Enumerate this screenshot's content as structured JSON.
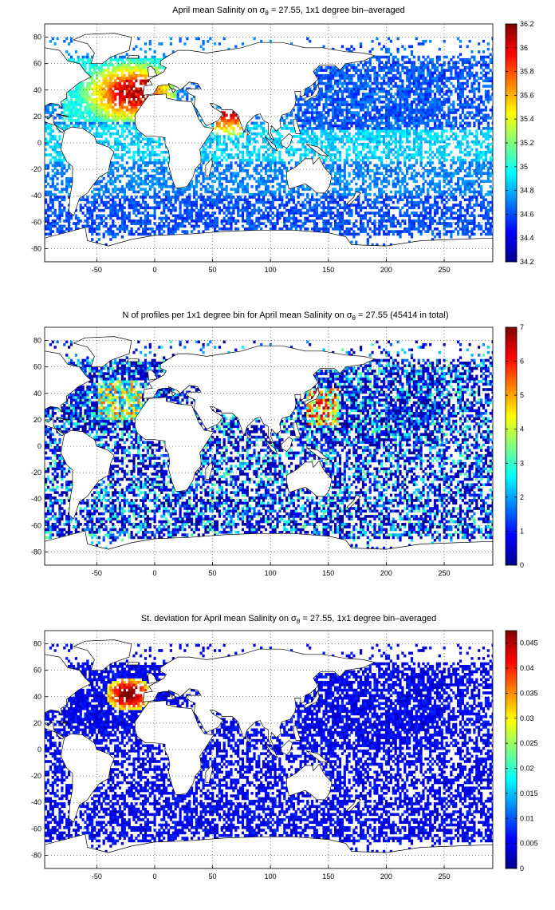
{
  "colors": {
    "jet": [
      "#00008f",
      "#0000ff",
      "#0080ff",
      "#00ffff",
      "#80ff80",
      "#ffff00",
      "#ff8000",
      "#ff0000",
      "#800000"
    ],
    "land": "#ffffff",
    "coast": "#000000"
  },
  "chart_data": [
    {
      "type": "heatmap",
      "id": "salinity",
      "title_main": "April mean Salinity on σ",
      "title_sub": "θ",
      "title_rest": " = 27.55, 1x1 degree bin–averaged",
      "xlim": [
        -95,
        292
      ],
      "ylim": [
        -90,
        90
      ],
      "xticks": [
        -50,
        0,
        50,
        100,
        150,
        200,
        250
      ],
      "yticks": [
        80,
        60,
        40,
        20,
        0,
        -20,
        -40,
        -60,
        -80
      ],
      "colorbar": {
        "min": 34.2,
        "max": 36.2,
        "ticks": [
          "36.2",
          "36",
          "35.8",
          "35.6",
          "35.4",
          "35.2",
          "35",
          "34.8",
          "34.6",
          "34.4",
          "34.2"
        ]
      },
      "field": "salinity"
    },
    {
      "type": "heatmap",
      "id": "count",
      "title_main": "N of profiles per 1x1 degree bin for April mean Salinity on σ",
      "title_sub": "θ",
      "title_rest": " = 27.55 (45414 in total)",
      "xlim": [
        -95,
        292
      ],
      "ylim": [
        -90,
        90
      ],
      "xticks": [
        -50,
        0,
        50,
        100,
        150,
        200,
        250
      ],
      "yticks": [
        80,
        60,
        40,
        20,
        0,
        -20,
        -40,
        -60,
        -80
      ],
      "colorbar": {
        "min": 0,
        "max": 7,
        "ticks": [
          "7",
          "6",
          "5",
          "4",
          "3",
          "2",
          "1",
          "0"
        ]
      },
      "field": "count"
    },
    {
      "type": "heatmap",
      "id": "stdev",
      "title_main": "St. deviation for April mean Salinity on σ",
      "title_sub": "θ",
      "title_rest": " = 27.55, 1x1 degree bin–averaged",
      "xlim": [
        -95,
        292
      ],
      "ylim": [
        -90,
        90
      ],
      "xticks": [
        -50,
        0,
        50,
        100,
        150,
        200,
        250
      ],
      "yticks": [
        80,
        60,
        40,
        20,
        0,
        -20,
        -40,
        -60,
        -80
      ],
      "colorbar": {
        "min": 0,
        "max": 0.0475,
        "ticks": [
          "0.045",
          "0.04",
          "0.035",
          "0.03",
          "0.025",
          "0.02",
          "0.015",
          "0.01",
          "0.005",
          "0"
        ]
      },
      "field": "stdev"
    }
  ]
}
